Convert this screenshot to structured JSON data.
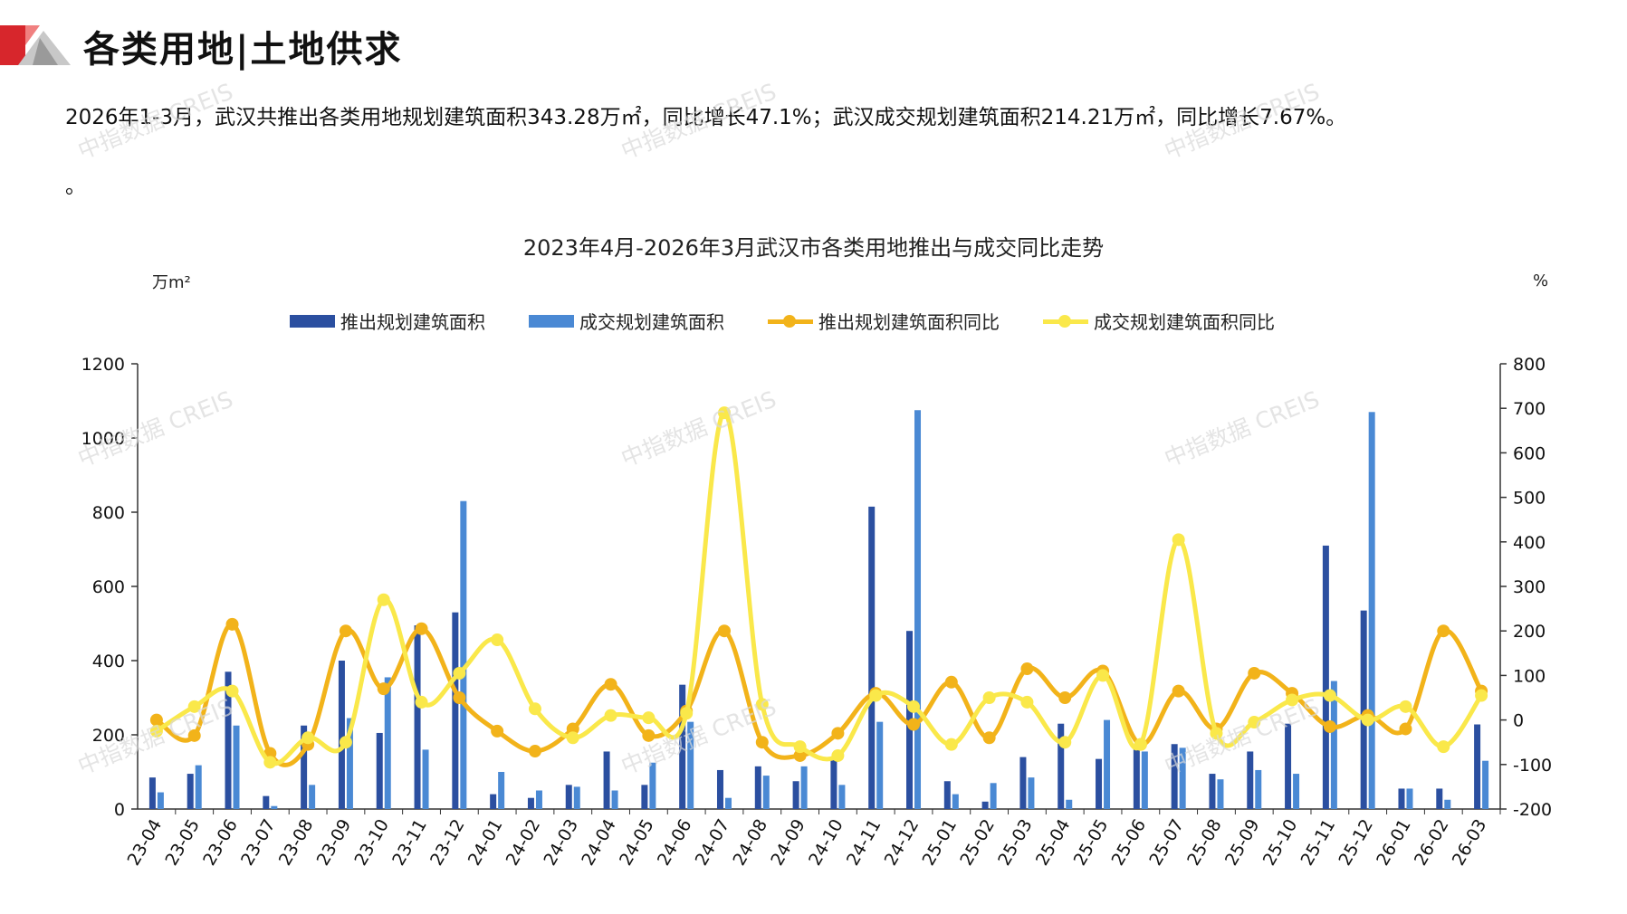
{
  "header": {
    "title": "各类用地|土地供求"
  },
  "summary": {
    "text": "2026年1-3月，武汉共推出各类用地规划建筑面积343.28万㎡，同比增长47.1%；武汉成交规划建筑面积214.21万㎡，同比增长7.67%。",
    "tail": "。"
  },
  "watermark": "中指数据 CREIS",
  "colors": {
    "supply_bar": "#2b4fa0",
    "deal_bar": "#4a89d4",
    "supply_yoy": "#f2b31a",
    "deal_yoy": "#fae84a",
    "axis": "#333333"
  },
  "chart_data": {
    "type": "bar",
    "title": "2023年4月-2026年3月武汉市各类用地推出与成交同比走势",
    "y_left_unit": "万m²",
    "y_right_unit": "%",
    "y_left_range": [
      0,
      1200
    ],
    "y_left_ticks": [
      0,
      200,
      400,
      600,
      800,
      1000,
      1200
    ],
    "y_right_range": [
      -200,
      800
    ],
    "y_right_ticks": [
      -200,
      -100,
      0,
      100,
      200,
      300,
      400,
      500,
      600,
      700,
      800
    ],
    "grid": false,
    "legend_position": "top",
    "categories": [
      "23-04",
      "23-05",
      "23-06",
      "23-07",
      "23-08",
      "23-09",
      "23-10",
      "23-11",
      "23-12",
      "24-01",
      "24-02",
      "24-03",
      "24-04",
      "24-05",
      "24-06",
      "24-07",
      "24-08",
      "24-09",
      "24-10",
      "24-11",
      "24-12",
      "25-01",
      "25-02",
      "25-03",
      "25-04",
      "25-05",
      "25-06",
      "25-07",
      "25-08",
      "25-09",
      "25-10",
      "25-11",
      "25-12",
      "26-01",
      "26-02",
      "26-03"
    ],
    "series": [
      {
        "name": "推出规划建筑面积",
        "type": "bar",
        "axis": "left",
        "values": [
          85,
          95,
          370,
          35,
          225,
          400,
          205,
          495,
          530,
          40,
          30,
          65,
          155,
          65,
          335,
          105,
          115,
          75,
          135,
          815,
          480,
          75,
          20,
          140,
          230,
          135,
          160,
          175,
          95,
          155,
          230,
          710,
          535,
          55,
          55,
          228
        ]
      },
      {
        "name": "成交规划建筑面积",
        "type": "bar",
        "axis": "left",
        "values": [
          45,
          118,
          225,
          8,
          65,
          245,
          355,
          160,
          830,
          100,
          50,
          60,
          50,
          125,
          235,
          30,
          90,
          115,
          65,
          235,
          1075,
          40,
          70,
          85,
          25,
          240,
          155,
          165,
          80,
          105,
          95,
          345,
          1070,
          55,
          25,
          130
        ]
      },
      {
        "name": "推出规划建筑面积同比",
        "type": "line",
        "axis": "right",
        "values": [
          0,
          -35,
          215,
          -75,
          -55,
          200,
          70,
          205,
          50,
          -25,
          -70,
          -20,
          80,
          -35,
          20,
          200,
          -50,
          -80,
          -30,
          60,
          -10,
          85,
          -40,
          115,
          50,
          110,
          -55,
          65,
          -20,
          105,
          60,
          -15,
          10,
          -20,
          200,
          65
        ]
      },
      {
        "name": "成交规划建筑面积同比",
        "type": "line",
        "axis": "right",
        "values": [
          -25,
          30,
          65,
          -95,
          -40,
          -50,
          270,
          40,
          105,
          180,
          25,
          -40,
          10,
          5,
          15,
          690,
          35,
          -60,
          -80,
          55,
          30,
          -55,
          50,
          40,
          -50,
          100,
          -55,
          405,
          -30,
          -5,
          45,
          55,
          0,
          30,
          -60,
          55
        ]
      }
    ]
  }
}
